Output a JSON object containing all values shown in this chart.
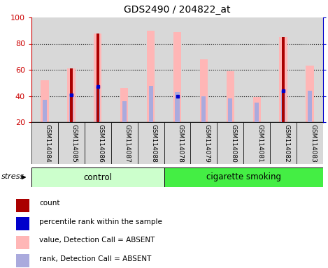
{
  "title": "GDS2490 / 204822_at",
  "samples": [
    "GSM114084",
    "GSM114085",
    "GSM114086",
    "GSM114087",
    "GSM114088",
    "GSM114078",
    "GSM114079",
    "GSM114080",
    "GSM114081",
    "GSM114082",
    "GSM114083"
  ],
  "groups": [
    "control",
    "control",
    "control",
    "control",
    "control",
    "cigarette smoking",
    "cigarette smoking",
    "cigarette smoking",
    "cigarette smoking",
    "cigarette smoking",
    "cigarette smoking"
  ],
  "value_absent": [
    52,
    61,
    88,
    46,
    90,
    89,
    68,
    59,
    39,
    85,
    63
  ],
  "rank_absent": [
    37,
    42,
    47,
    36,
    48,
    43,
    40,
    38,
    35,
    44,
    44
  ],
  "count": [
    0,
    61,
    88,
    0,
    0,
    0,
    0,
    0,
    0,
    85,
    0
  ],
  "percentile": [
    0,
    41,
    47,
    0,
    0,
    40,
    0,
    0,
    0,
    44,
    0
  ],
  "ymin": 20,
  "ymax": 100,
  "yleft_color": "#cc0000",
  "yright_color": "#0000cc",
  "bar_pink": "#ffb6b6",
  "bar_lightblue": "#aaaadd",
  "bar_darkred": "#aa0000",
  "bar_blue": "#0000cc",
  "ctrl_color": "#ccffcc",
  "smk_color": "#44ee44",
  "sample_box_color": "#d8d8d8",
  "legend_items": [
    {
      "label": "count",
      "color": "#aa0000"
    },
    {
      "label": "percentile rank within the sample",
      "color": "#0000cc"
    },
    {
      "label": "value, Detection Call = ABSENT",
      "color": "#ffb6b6"
    },
    {
      "label": "rank, Detection Call = ABSENT",
      "color": "#aaaadd"
    }
  ],
  "ctrl_n": 5,
  "smk_n": 6
}
